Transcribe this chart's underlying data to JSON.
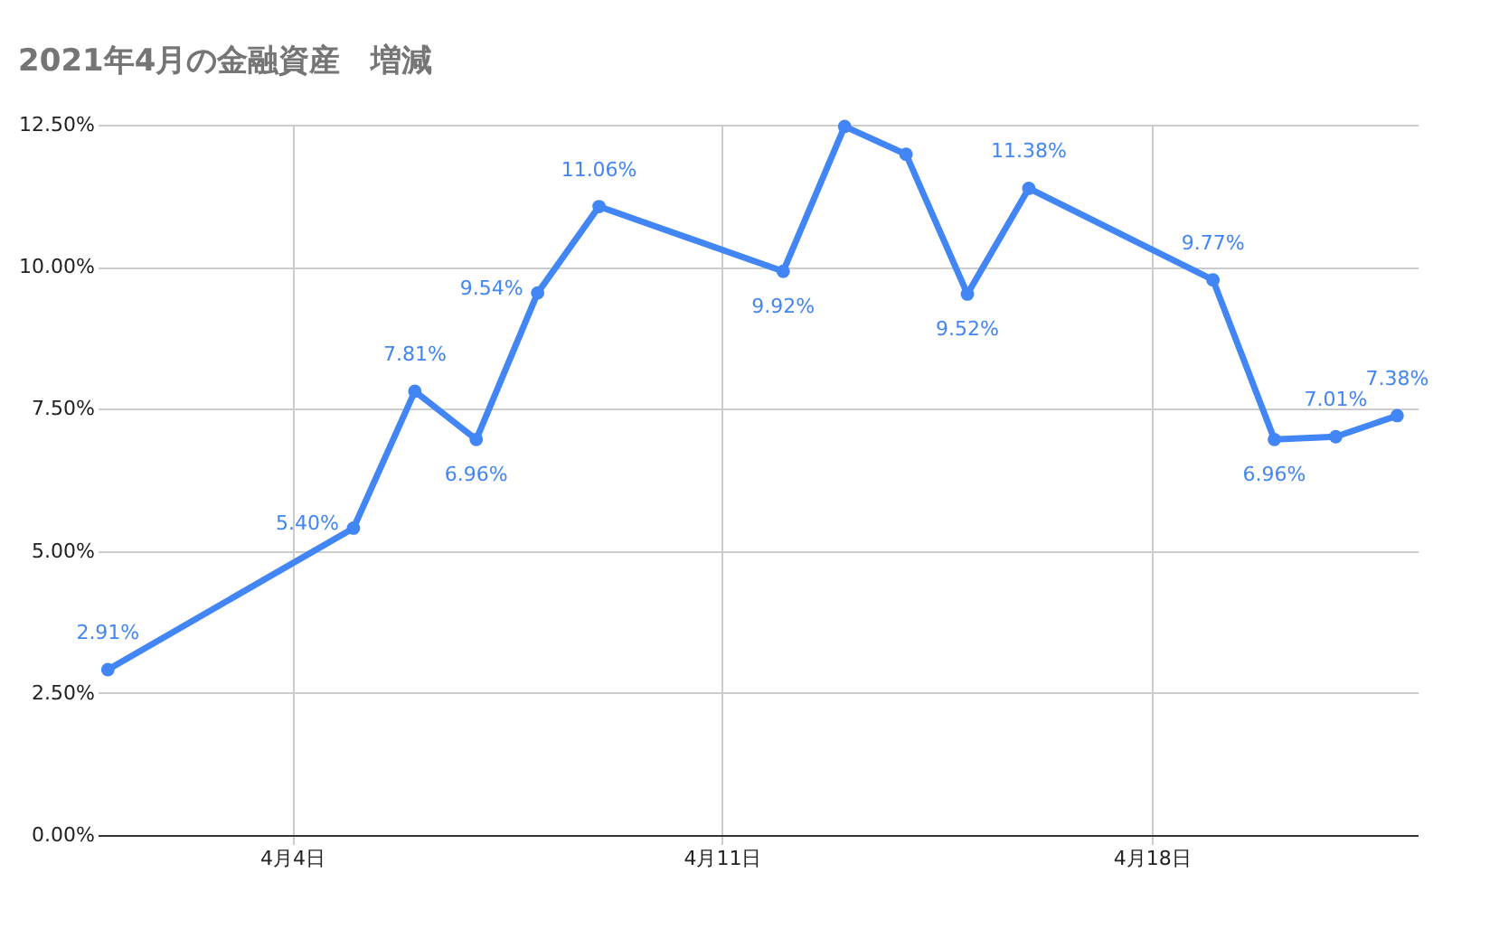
{
  "chart_data": {
    "type": "line",
    "title": "2021年4月の金融資産　増減",
    "x": [
      "2021-04-01",
      "2021-04-05",
      "2021-04-06",
      "2021-04-07",
      "2021-04-08",
      "2021-04-09",
      "2021-04-12",
      "2021-04-13",
      "2021-04-14",
      "2021-04-15",
      "2021-04-16",
      "2021-04-19",
      "2021-04-20",
      "2021-04-21",
      "2021-04-22"
    ],
    "series": [
      {
        "color": "#4285f4",
        "values": [
          2.91,
          5.4,
          7.81,
          6.96,
          9.54,
          11.06,
          9.92,
          12.47,
          11.98,
          9.52,
          11.38,
          9.77,
          6.96,
          7.01,
          7.38
        ],
        "value_labels": [
          "2.91%",
          "5.40%",
          "7.81%",
          "6.96%",
          "9.54%",
          "11.06%",
          "9.92%",
          null,
          null,
          "9.52%",
          "11.38%",
          "9.77%",
          "6.96%",
          "7.01%",
          "7.38%"
        ]
      }
    ],
    "xlim": [
      "2021-03-31T20:00",
      "2021-04-22T08:00"
    ],
    "xticks": [
      {
        "value": "2021-04-04",
        "label": "4月4日"
      },
      {
        "value": "2021-04-11",
        "label": "4月11日"
      },
      {
        "value": "2021-04-18",
        "label": "4月18日"
      }
    ],
    "ylim": [
      0,
      12.5
    ],
    "yticks": [
      {
        "value": 0,
        "label": "0.00%"
      },
      {
        "value": 2.5,
        "label": "2.50%"
      },
      {
        "value": 5,
        "label": "5.00%"
      },
      {
        "value": 7.5,
        "label": "7.50%"
      },
      {
        "value": 10,
        "label": "10.00%"
      },
      {
        "value": 12.5,
        "label": "12.50%"
      }
    ],
    "grid": true,
    "marker": "circle",
    "line_style": "solid"
  }
}
